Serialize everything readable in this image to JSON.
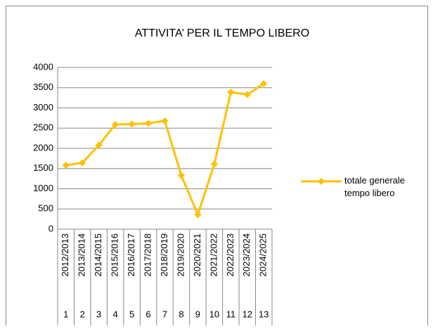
{
  "chart_data": {
    "type": "line",
    "title": "ATTIVITA’ PER IL TEMPO LIBERO",
    "categories": [
      "2012/2013",
      "2013/2014",
      "2014/2015",
      "2015/2016",
      "2016/2017",
      "2017/2018",
      "2018/2019",
      "2019/2020",
      "2020/2021",
      "2021/2022",
      "2022/2023",
      "2023/2024",
      "2024/2025"
    ],
    "category_numbers": [
      1,
      2,
      3,
      4,
      5,
      6,
      7,
      8,
      9,
      10,
      11,
      12,
      13
    ],
    "series": [
      {
        "name": "totale generale tempo libero",
        "color": "#FFC000",
        "values": [
          1580,
          1640,
          2080,
          2590,
          2600,
          2620,
          2680,
          1330,
          360,
          1610,
          3390,
          3330,
          3600
        ]
      }
    ],
    "ylim": [
      0,
      4000
    ],
    "yticks": [
      0,
      500,
      1000,
      1500,
      2000,
      2500,
      3000,
      3500,
      4000
    ],
    "grid": true,
    "legend": "right"
  }
}
